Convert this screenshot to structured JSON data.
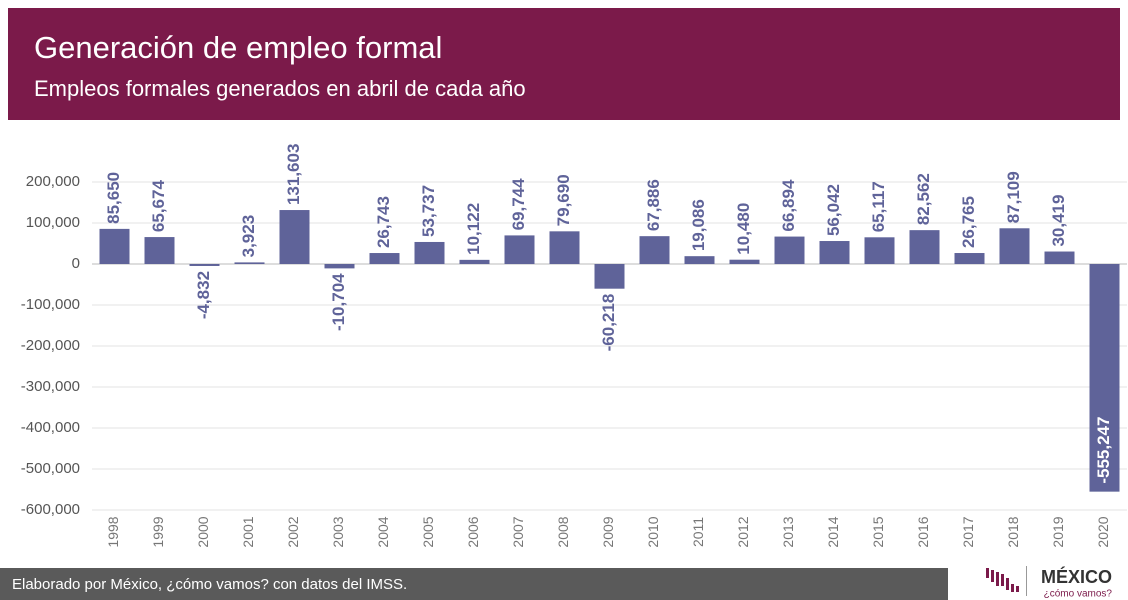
{
  "chart_data": {
    "type": "bar",
    "title": "Generación de empleo formal",
    "subtitle": "Empleos formales generados en abril de cada año",
    "categories": [
      "1998",
      "1999",
      "2000",
      "2001",
      "2002",
      "2003",
      "2004",
      "2005",
      "2006",
      "2007",
      "2008",
      "2009",
      "2010",
      "2011",
      "2012",
      "2013",
      "2014",
      "2015",
      "2016",
      "2017",
      "2018",
      "2019",
      "2020"
    ],
    "values": [
      85650,
      65674,
      -4832,
      3923,
      131603,
      -10704,
      26743,
      53737,
      10122,
      69744,
      79690,
      -60218,
      67886,
      19086,
      10480,
      66894,
      56042,
      65117,
      82562,
      26765,
      87109,
      30419,
      -555247
    ],
    "value_labels": [
      "85,650",
      "65,674",
      "-4,832",
      "3,923",
      "131,603",
      "-10,704",
      "26,743",
      "53,737",
      "10,122",
      "69,744",
      "79,690",
      "-60,218",
      "67,886",
      "19,086",
      "10,480",
      "66,894",
      "56,042",
      "65,117",
      "82,562",
      "26,765",
      "87,109",
      "30,419",
      "-555,247"
    ],
    "color": "#5f6399",
    "ylim": [
      -600000,
      200000
    ],
    "yticks": [
      {
        "value": -600000,
        "label": "-600,000"
      },
      {
        "value": -500000,
        "label": "-500,000"
      },
      {
        "value": -400000,
        "label": "-400,000"
      },
      {
        "value": -300000,
        "label": "-300,000"
      },
      {
        "value": -200000,
        "label": "-200,000"
      },
      {
        "value": -100000,
        "label": "-100,000"
      },
      0,
      {
        "value": 100000,
        "label": "100,000"
      },
      {
        "value": 200000,
        "label": "200,000"
      }
    ],
    "grid": true,
    "source": "Elaborado por México, ¿cómo vamos? con datos del IMSS.",
    "logo": {
      "name": "MÉXICO",
      "tagline": "¿cómo vamos?"
    }
  }
}
